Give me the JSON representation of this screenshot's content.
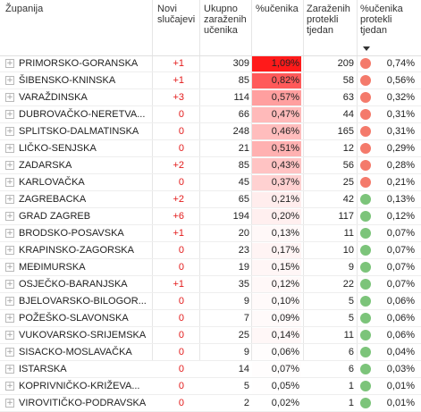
{
  "headers": {
    "zupanija": "Županija",
    "novi_1": "Novi",
    "novi_2": "slučajevi",
    "uk_1": "Ukupno",
    "uk_2": "zaraženih",
    "uk_3": "učenika",
    "pct": "%učenika",
    "zar_1": "Zaraženih",
    "zar_2": "protekli",
    "zar_3": "tjedan",
    "pp_1": "%učenika",
    "pp_2": "protekli",
    "pp_3": "tjedan"
  },
  "colors": {
    "red_dot": "#f47a6b",
    "green_dot": "#7cc47a",
    "heat_max": "#ff1a1a",
    "novi_text": "#e31b1b"
  },
  "rows": [
    {
      "name": "PRIMORSKO-GORANSKA",
      "novi": "+1",
      "ukupno": "309",
      "pct": "1,09%",
      "heat": 1.0,
      "zar": "209",
      "status": "red",
      "pp": "0,74%"
    },
    {
      "name": "ŠIBENSKO-KNINSKA",
      "novi": "+1",
      "ukupno": "85",
      "pct": "0,82%",
      "heat": 0.72,
      "zar": "58",
      "status": "red",
      "pp": "0,56%"
    },
    {
      "name": "VARAŽDINSKA",
      "novi": "+3",
      "ukupno": "114",
      "pct": "0,57%",
      "heat": 0.42,
      "zar": "63",
      "status": "red",
      "pp": "0,32%"
    },
    {
      "name": "DUBROVAČKO-NERETVA...",
      "novi": "0",
      "ukupno": "66",
      "pct": "0,47%",
      "heat": 0.3,
      "zar": "44",
      "status": "red",
      "pp": "0,31%"
    },
    {
      "name": "SPLITSKO-DALMATINSKA",
      "novi": "0",
      "ukupno": "248",
      "pct": "0,46%",
      "heat": 0.29,
      "zar": "165",
      "status": "red",
      "pp": "0,31%"
    },
    {
      "name": "LIČKO-SENJSKA",
      "novi": "0",
      "ukupno": "21",
      "pct": "0,51%",
      "heat": 0.34,
      "zar": "12",
      "status": "red",
      "pp": "0,29%"
    },
    {
      "name": "ZADARSKA",
      "novi": "+2",
      "ukupno": "85",
      "pct": "0,43%",
      "heat": 0.26,
      "zar": "56",
      "status": "red",
      "pp": "0,28%"
    },
    {
      "name": "KARLOVAČKA",
      "novi": "0",
      "ukupno": "45",
      "pct": "0,37%",
      "heat": 0.2,
      "zar": "25",
      "status": "red",
      "pp": "0,21%"
    },
    {
      "name": "ZAGREBACKA",
      "novi": "+2",
      "ukupno": "65",
      "pct": "0,21%",
      "heat": 0.08,
      "zar": "42",
      "status": "green",
      "pp": "0,13%"
    },
    {
      "name": "GRAD ZAGREB",
      "novi": "+6",
      "ukupno": "194",
      "pct": "0,20%",
      "heat": 0.07,
      "zar": "117",
      "status": "green",
      "pp": "0,12%"
    },
    {
      "name": "BRODSKO-POSAVSKA",
      "novi": "+1",
      "ukupno": "20",
      "pct": "0,13%",
      "heat": 0.03,
      "zar": "11",
      "status": "green",
      "pp": "0,07%"
    },
    {
      "name": "KRAPINSKO-ZAGORSKA",
      "novi": "0",
      "ukupno": "23",
      "pct": "0,17%",
      "heat": 0.05,
      "zar": "10",
      "status": "green",
      "pp": "0,07%"
    },
    {
      "name": "MEĐIMURSKA",
      "novi": "0",
      "ukupno": "19",
      "pct": "0,15%",
      "heat": 0.04,
      "zar": "9",
      "status": "green",
      "pp": "0,07%"
    },
    {
      "name": "OSJEČKO-BARANJSKA",
      "novi": "+1",
      "ukupno": "35",
      "pct": "0,12%",
      "heat": 0.03,
      "zar": "22",
      "status": "green",
      "pp": "0,07%"
    },
    {
      "name": "BJELOVARSKO-BILOGOR...",
      "novi": "0",
      "ukupno": "9",
      "pct": "0,10%",
      "heat": 0.02,
      "zar": "5",
      "status": "green",
      "pp": "0,06%"
    },
    {
      "name": "POŽEŠKO-SLAVONSKA",
      "novi": "0",
      "ukupno": "7",
      "pct": "0,09%",
      "heat": 0.02,
      "zar": "5",
      "status": "green",
      "pp": "0,06%"
    },
    {
      "name": "VUKOVARSKO-SRIJEMSKA",
      "novi": "0",
      "ukupno": "25",
      "pct": "0,14%",
      "heat": 0.035,
      "zar": "11",
      "status": "green",
      "pp": "0,06%"
    },
    {
      "name": "SISACKO-MOSLAVAČKA",
      "novi": "0",
      "ukupno": "9",
      "pct": "0,06%",
      "heat": 0.01,
      "zar": "6",
      "status": "green",
      "pp": "0,04%"
    },
    {
      "name": "ISTARSKA",
      "novi": "0",
      "ukupno": "14",
      "pct": "0,07%",
      "heat": 0.01,
      "zar": "6",
      "status": "green",
      "pp": "0,03%"
    },
    {
      "name": "KOPRIVNIČKO-KRIŽEVA...",
      "novi": "0",
      "ukupno": "5",
      "pct": "0,05%",
      "heat": 0.005,
      "zar": "1",
      "status": "green",
      "pp": "0,01%"
    },
    {
      "name": "VIROVITIČKO-PODRAVSKA",
      "novi": "0",
      "ukupno": "2",
      "pct": "0,02%",
      "heat": 0.0,
      "zar": "1",
      "status": "green",
      "pp": "0,01%"
    }
  ]
}
